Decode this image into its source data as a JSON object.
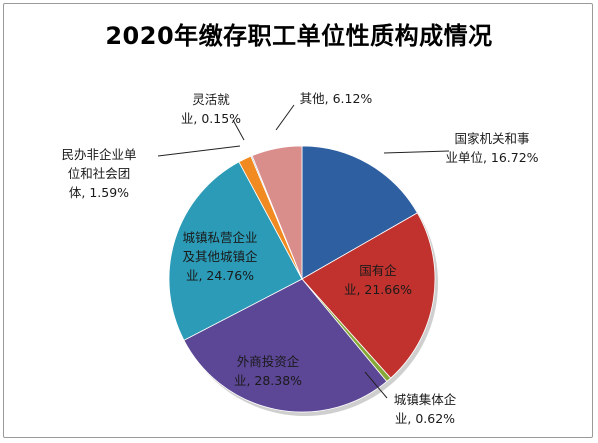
{
  "chart_data": {
    "type": "pie",
    "title": "2020年缴存职工单位性质构成情况",
    "slices": [
      {
        "label_lines": [
          "国家机关和事",
          "业单位, 16.72%"
        ],
        "value": 16.72,
        "color": "#2e5fa0"
      },
      {
        "label_lines": [
          "国有企",
          "业, 21.66%"
        ],
        "value": 21.66,
        "color": "#c1322e"
      },
      {
        "label_lines": [
          "城镇集体企",
          "业, 0.62%"
        ],
        "value": 0.62,
        "color": "#86a838"
      },
      {
        "label_lines": [
          "外商投资企",
          "业, 28.38%"
        ],
        "value": 28.38,
        "color": "#5c4696"
      },
      {
        "label_lines": [
          "城镇私营企业",
          "及其他城镇企",
          "业, 24.76%"
        ],
        "value": 24.76,
        "color": "#2b9bb7"
      },
      {
        "label_lines": [
          "民办非企业单",
          "位和社会团",
          "体, 1.59%"
        ],
        "value": 1.59,
        "color": "#f08a21"
      },
      {
        "label_lines": [
          "灵活就",
          "业, 0.15%"
        ],
        "value": 0.15,
        "color": "#8ea7cf"
      },
      {
        "label_lines": [
          "其他, 6.12%"
        ],
        "value": 6.12,
        "color": "#d98e8c"
      }
    ]
  }
}
